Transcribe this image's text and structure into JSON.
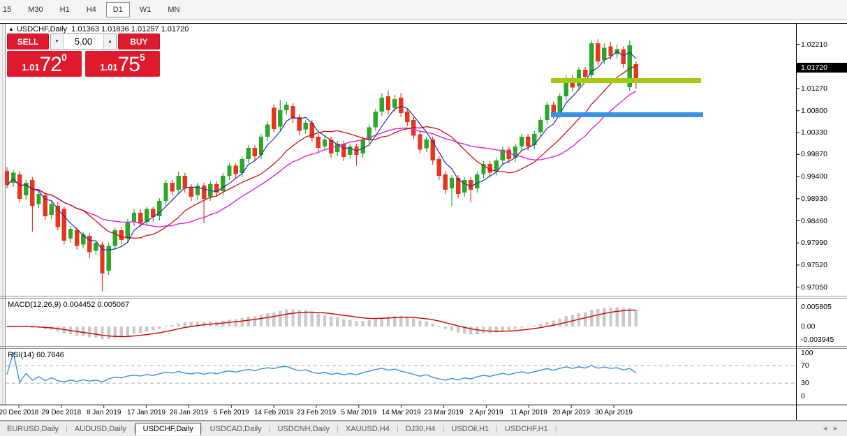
{
  "toolbar": {
    "timeframes": [
      "15",
      "M30",
      "H1",
      "H4",
      "D1",
      "W1",
      "MN"
    ],
    "active": "D1"
  },
  "icons": {
    "bullish_marker": "▲",
    "vol_down": "▼",
    "vol_up": "▲",
    "tab_scroll_left": "◄",
    "tab_scroll_right": "►"
  },
  "header": {
    "symbol": "USDCHF,Daily",
    "ohlc_text": "1.01363 1.01836 1.01257 1.01720"
  },
  "trade": {
    "sell_label": "SELL",
    "buy_label": "BUY",
    "volume": "5.00",
    "sell_price": {
      "prefix": "1.01",
      "big": "72",
      "sup": "0"
    },
    "buy_price": {
      "prefix": "1.01",
      "big": "75",
      "sup": "5"
    }
  },
  "price_axis": {
    "ticks": [
      "1.02210",
      "1.01270",
      "1.00800",
      "1.00330",
      "0.99870",
      "0.99400",
      "0.98930",
      "0.98460",
      "0.97990",
      "0.97520",
      "0.97050"
    ],
    "current": "1.01720"
  },
  "macd_panel": {
    "label": "MACD(12,26,9) 0.004452 0.005067",
    "axis": [
      "0.005805",
      "0.00",
      "-0.003945"
    ]
  },
  "rsi_panel": {
    "label": "RSI(14) 60.7646",
    "axis": [
      "100",
      "70",
      "30",
      "0"
    ]
  },
  "date_axis": [
    "20 Dec 2018",
    "29 Dec 2018",
    "8 Jan 2019",
    "17 Jan 2019",
    "26 Jan 2019",
    "5 Feb 2019",
    "14 Feb 2019",
    "23 Feb 2019",
    "5 Mar 2019",
    "14 Mar 2019",
    "23 Mar 2019",
    "2 Apr 2019",
    "11 Apr 2019",
    "20 Apr 2019",
    "30 Apr 2019"
  ],
  "tabs": {
    "items": [
      "EURUSD,Daily",
      "AUDUSD,Daily",
      "USDCHF,Daily",
      "USDCAD,Daily",
      "USDCNH,Daily",
      "XAUUSD,H4",
      "DJ30,H4",
      "USDOil,H1",
      "USDCHF,H1"
    ],
    "active": "USDCHF,Daily",
    "separator": "|"
  },
  "colors": {
    "bull": "#2aa82a",
    "bear": "#e8351f",
    "ma_fast": "#2b2ba6",
    "ma_mid": "#cc0000",
    "ma_slow": "#e020e0",
    "macd_hist": "#c9c9c9",
    "macd_signal": "#cc0000",
    "rsi_line": "#3d8fdd",
    "rsi_level": "#b9b9b9",
    "resistance_line": "#a3c916",
    "support_line": "#3b92e4",
    "trade_red": "#de1a2e",
    "price_tag_bg": "#000000"
  },
  "chart_data": {
    "type": "candlestick",
    "symbol": "USDCHF",
    "timeframe": "Daily",
    "current_bar": {
      "open": 1.01363,
      "high": 1.01836,
      "low": 1.01257,
      "close": 1.0172
    },
    "price_axis_ticks": [
      1.0221,
      1.0127,
      1.008,
      1.0033,
      0.9987,
      0.994,
      0.9893,
      0.9846,
      0.9799,
      0.9752,
      0.9705
    ],
    "candles": [
      [
        0.9952,
        0.996,
        0.9915,
        0.9922
      ],
      [
        0.9927,
        0.9954,
        0.9918,
        0.9948
      ],
      [
        0.9945,
        0.9951,
        0.9885,
        0.9893
      ],
      [
        0.99,
        0.9933,
        0.9891,
        0.9927
      ],
      [
        0.9933,
        0.9939,
        0.9823,
        0.9878
      ],
      [
        0.9882,
        0.9909,
        0.9873,
        0.9903
      ],
      [
        0.99,
        0.9906,
        0.9848,
        0.9856
      ],
      [
        0.9859,
        0.9888,
        0.985,
        0.9882
      ],
      [
        0.9878,
        0.9885,
        0.9826,
        0.9833
      ],
      [
        0.9871,
        0.9876,
        0.9796,
        0.9804
      ],
      [
        0.9808,
        0.9835,
        0.9799,
        0.9829
      ],
      [
        0.9826,
        0.9832,
        0.9785,
        0.9793
      ],
      [
        0.9796,
        0.9823,
        0.9788,
        0.9817
      ],
      [
        0.9814,
        0.982,
        0.9767,
        0.9779
      ],
      [
        0.9782,
        0.9805,
        0.9773,
        0.9799
      ],
      [
        0.9796,
        0.9802,
        0.9696,
        0.9734
      ],
      [
        0.974,
        0.9799,
        0.9731,
        0.9793
      ],
      [
        0.9793,
        0.9832,
        0.9785,
        0.9826
      ],
      [
        0.9826,
        0.9832,
        0.9796,
        0.9805
      ],
      [
        0.9808,
        0.985,
        0.9799,
        0.9844
      ],
      [
        0.9844,
        0.9871,
        0.9835,
        0.9863
      ],
      [
        0.9863,
        0.9871,
        0.9832,
        0.9841
      ],
      [
        0.9844,
        0.9876,
        0.9835,
        0.9871
      ],
      [
        0.9871,
        0.9876,
        0.9844,
        0.9854
      ],
      [
        0.9856,
        0.9894,
        0.9847,
        0.9888
      ],
      [
        0.9888,
        0.9933,
        0.9879,
        0.9927
      ],
      [
        0.9927,
        0.9933,
        0.99,
        0.9908
      ],
      [
        0.9912,
        0.9951,
        0.9903,
        0.9942
      ],
      [
        0.9942,
        0.9948,
        0.9906,
        0.9915
      ],
      [
        0.9918,
        0.9924,
        0.9888,
        0.9897
      ],
      [
        0.99,
        0.9927,
        0.9891,
        0.9921
      ],
      [
        0.9921,
        0.9927,
        0.9841,
        0.9893
      ],
      [
        0.9897,
        0.993,
        0.9888,
        0.9924
      ],
      [
        0.9924,
        0.993,
        0.9897,
        0.9906
      ],
      [
        0.9909,
        0.9948,
        0.99,
        0.9942
      ],
      [
        0.9942,
        0.9968,
        0.9933,
        0.9963
      ],
      [
        0.9963,
        0.9968,
        0.9936,
        0.9945
      ],
      [
        0.9948,
        0.9983,
        0.9939,
        0.9977
      ],
      [
        0.9977,
        1.0007,
        0.9968,
        1.0001
      ],
      [
        1.0001,
        1.0007,
        0.9974,
        0.9983
      ],
      [
        0.9986,
        1.0031,
        0.9977,
        1.0025
      ],
      [
        1.0025,
        1.0057,
        1.0016,
        1.0051
      ],
      [
        1.0086,
        1.0093,
        1.0034,
        1.0041
      ],
      [
        1.0046,
        1.0103,
        1.0037,
        1.0081
      ],
      [
        1.0081,
        1.0099,
        1.0072,
        1.0093
      ],
      [
        1.009,
        1.0096,
        1.0054,
        1.0063
      ],
      [
        1.0066,
        1.0072,
        1.0028,
        1.0037
      ],
      [
        1.004,
        1.006,
        1.0031,
        1.0054
      ],
      [
        1.0054,
        1.006,
        1.0013,
        1.0022
      ],
      [
        1.0025,
        1.0031,
        0.9992,
        1.0001
      ],
      [
        1.0004,
        1.0025,
        0.9995,
        1.0019
      ],
      [
        1.0019,
        1.0025,
        0.998,
        0.9989
      ],
      [
        0.9992,
        1.0016,
        0.9983,
        1.001
      ],
      [
        1.001,
        1.0016,
        0.9973,
        0.9982
      ],
      [
        0.9986,
        1.001,
        0.9977,
        1.0004
      ],
      [
        1.0004,
        1.001,
        0.9963,
        0.9986
      ],
      [
        0.9989,
        1.0025,
        0.998,
        1.0019
      ],
      [
        1.0019,
        1.0051,
        1.001,
        1.0045
      ],
      [
        1.0045,
        1.0084,
        1.0037,
        1.0078
      ],
      [
        1.0078,
        1.0117,
        1.0069,
        1.0108
      ],
      [
        1.0111,
        1.0123,
        1.0072,
        1.0081
      ],
      [
        1.0086,
        1.0114,
        1.0078,
        1.0105
      ],
      [
        1.0108,
        1.0117,
        1.0066,
        1.0075
      ],
      [
        1.0078,
        1.0084,
        1.0047,
        1.0056
      ],
      [
        1.006,
        1.0066,
        1.0019,
        1.0027
      ],
      [
        1.003,
        1.0036,
        0.9989,
        0.9997
      ],
      [
        1.0,
        1.0025,
        0.9992,
        1.0019
      ],
      [
        1.0019,
        1.0025,
        0.9965,
        0.9974
      ],
      [
        0.9977,
        0.9983,
        0.9933,
        0.9942
      ],
      [
        0.9945,
        0.9951,
        0.9903,
        0.9912
      ],
      [
        0.9915,
        0.9943,
        0.9878,
        0.9937
      ],
      [
        0.9937,
        0.9943,
        0.9894,
        0.9903
      ],
      [
        0.9906,
        0.9939,
        0.9897,
        0.9933
      ],
      [
        0.9933,
        0.9939,
        0.9885,
        0.9912
      ],
      [
        0.9915,
        0.9951,
        0.9906,
        0.9945
      ],
      [
        0.9945,
        0.9973,
        0.9936,
        0.9967
      ],
      [
        0.9967,
        0.9973,
        0.9939,
        0.9948
      ],
      [
        0.9951,
        0.998,
        0.9942,
        0.9974
      ],
      [
        0.9974,
        1.0003,
        0.9965,
        0.9997
      ],
      [
        0.9997,
        1.0003,
        0.9968,
        0.9977
      ],
      [
        0.998,
        1.001,
        0.9971,
        1.0004
      ],
      [
        1.0004,
        1.0031,
        0.9995,
        1.0025
      ],
      [
        1.0025,
        1.0031,
        0.9995,
        1.0004
      ],
      [
        1.0007,
        1.0037,
        0.9998,
        1.0031
      ],
      [
        1.0034,
        1.0066,
        1.0025,
        1.006
      ],
      [
        1.006,
        1.0099,
        1.0051,
        1.0093
      ],
      [
        1.0093,
        1.0099,
        1.0062,
        1.0071
      ],
      [
        1.0074,
        1.0117,
        1.0065,
        1.0111
      ],
      [
        1.0111,
        1.0155,
        1.0102,
        1.0149
      ],
      [
        1.0149,
        1.0155,
        1.012,
        1.0129
      ],
      [
        1.0132,
        1.0173,
        1.0123,
        1.0167
      ],
      [
        1.0167,
        1.0173,
        1.014,
        1.0152
      ],
      [
        1.0155,
        1.0229,
        1.0146,
        1.0223
      ],
      [
        1.0223,
        1.0232,
        1.0176,
        1.0185
      ],
      [
        1.0188,
        1.0223,
        1.0179,
        1.0214
      ],
      [
        1.0217,
        1.0226,
        1.0188,
        1.0197
      ],
      [
        1.02,
        1.022,
        1.0191,
        1.0211
      ],
      [
        1.0211,
        1.0217,
        1.017,
        1.0179
      ],
      [
        1.013,
        1.0229,
        1.0122,
        1.0219
      ],
      [
        1.0179,
        1.0185,
        1.0127,
        1.0146
      ]
    ],
    "moving_averages": [
      {
        "period": 5,
        "color": "#2b2ba6"
      },
      {
        "period": 13,
        "color": "#cc0000"
      },
      {
        "period": 21,
        "color": "#e020e0"
      }
    ],
    "horizontal_lines": [
      {
        "name": "resistance",
        "color": "#a3c916",
        "price": 1.0144,
        "from_bar": 86,
        "to_bar": 109
      },
      {
        "name": "support",
        "color": "#3b92e4",
        "price": 1.0072,
        "from_bar": 86,
        "to_bar": 109
      }
    ],
    "macd": {
      "fast": 12,
      "slow": 26,
      "signal": 9,
      "main_value": 0.004452,
      "signal_value": 0.005067,
      "axis_max": 0.005805,
      "axis_min": -0.003945
    },
    "rsi": {
      "period": 14,
      "value": 60.7646,
      "levels": [
        70,
        30
      ],
      "range": [
        0,
        100
      ]
    },
    "x_axis_dates": [
      "20 Dec 2018",
      "29 Dec 2018",
      "8 Jan 2019",
      "17 Jan 2019",
      "26 Jan 2019",
      "5 Feb 2019",
      "14 Feb 2019",
      "23 Feb 2019",
      "5 Mar 2019",
      "14 Mar 2019",
      "23 Mar 2019",
      "2 Apr 2019",
      "11 Apr 2019",
      "20 Apr 2019",
      "30 Apr 2019"
    ]
  }
}
